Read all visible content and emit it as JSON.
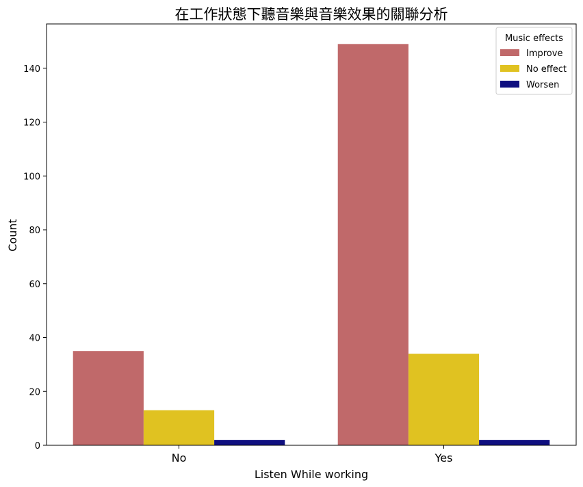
{
  "chart_data": {
    "type": "bar",
    "title": "在工作狀態下聽音樂與音樂效果的關聯分析",
    "xlabel": "Listen While working",
    "ylabel": "Count",
    "categories": [
      "No",
      "Yes"
    ],
    "series": [
      {
        "name": "Improve",
        "color": "#c0696a",
        "values": [
          35,
          149
        ]
      },
      {
        "name": "No effect",
        "color": "#e0c221",
        "values": [
          13,
          34
        ]
      },
      {
        "name": "Worsen",
        "color": "#0f0f80",
        "values": [
          2,
          2
        ]
      }
    ],
    "ylim": [
      0,
      156.45
    ],
    "yticks": [
      0,
      20,
      40,
      60,
      80,
      100,
      120,
      140
    ],
    "legend": {
      "title": "Music effects",
      "position": "top-right"
    },
    "grid": false
  }
}
